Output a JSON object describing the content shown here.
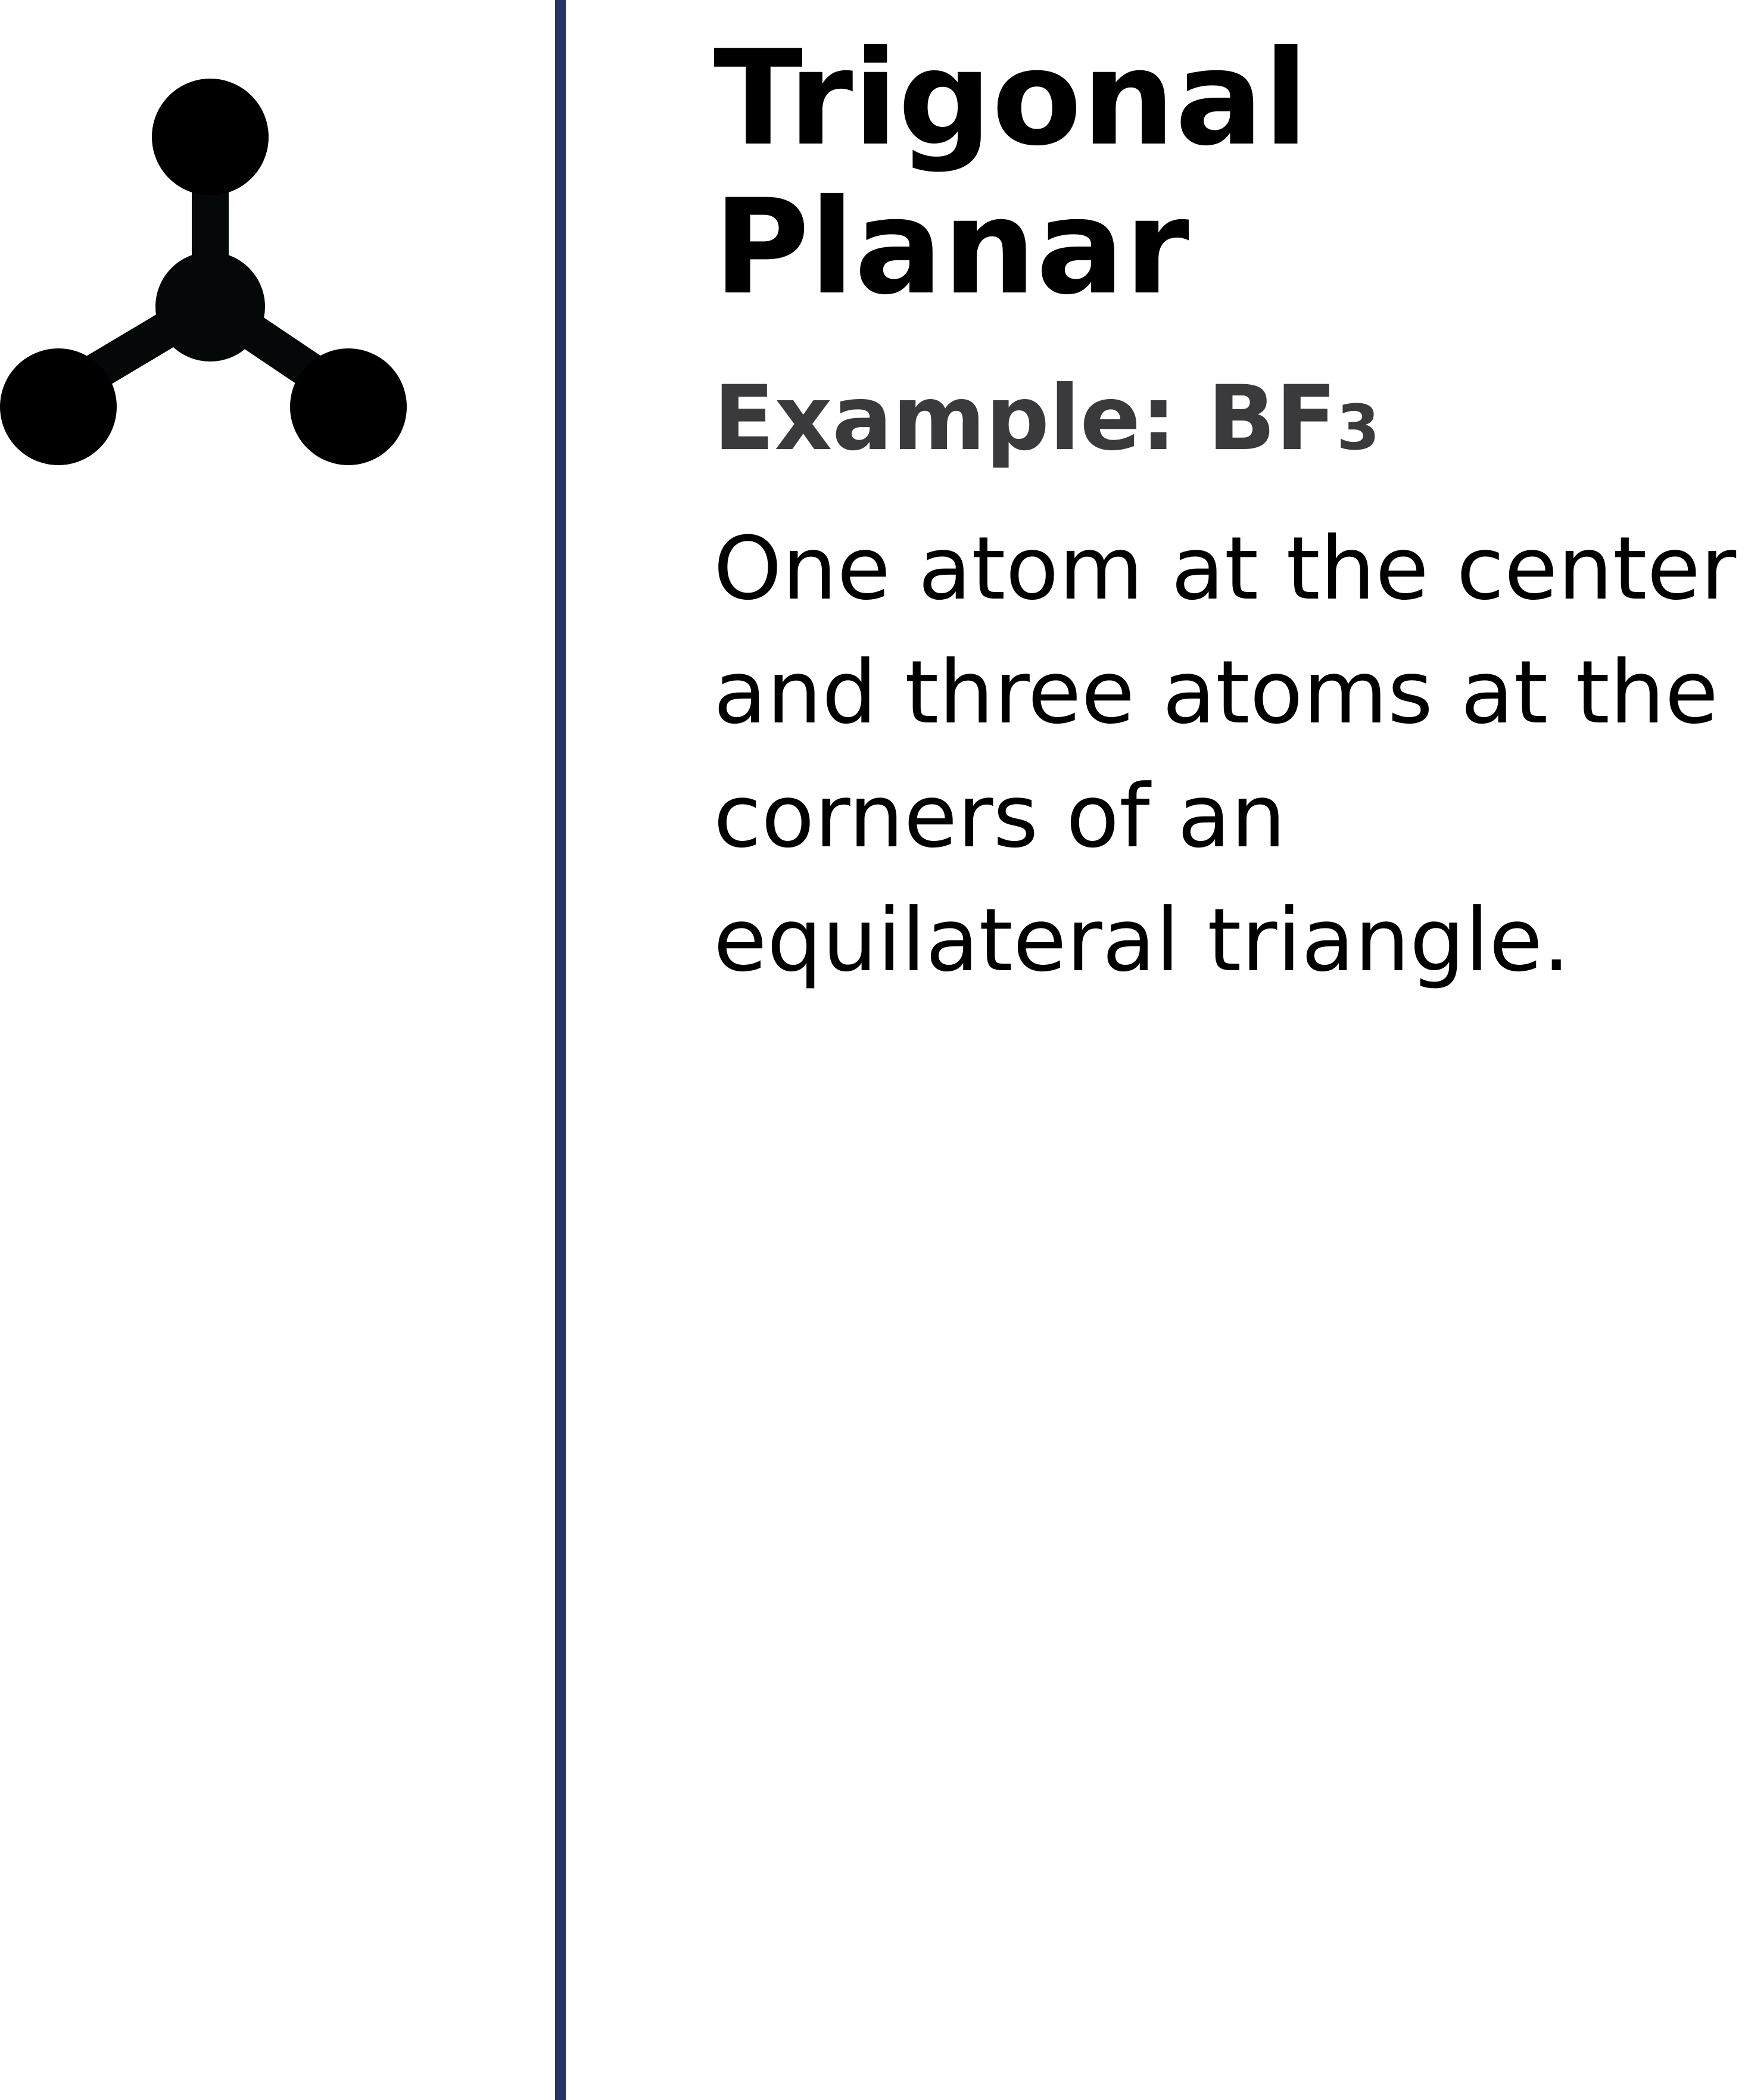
{
  "heading": {
    "title_line1": "Trigonal",
    "title_line2": "Planar"
  },
  "example": {
    "label": "Example: ",
    "formula_main": "BF",
    "formula_subscript": "3"
  },
  "description": "One atom at the center and three atoms at the corners of an equilateral triangle.",
  "colors": {
    "divider": "#283366",
    "atom": "#000000",
    "title": "#000000",
    "example": "#3a3a3c"
  },
  "icon": "trigonal-planar-molecule-icon"
}
